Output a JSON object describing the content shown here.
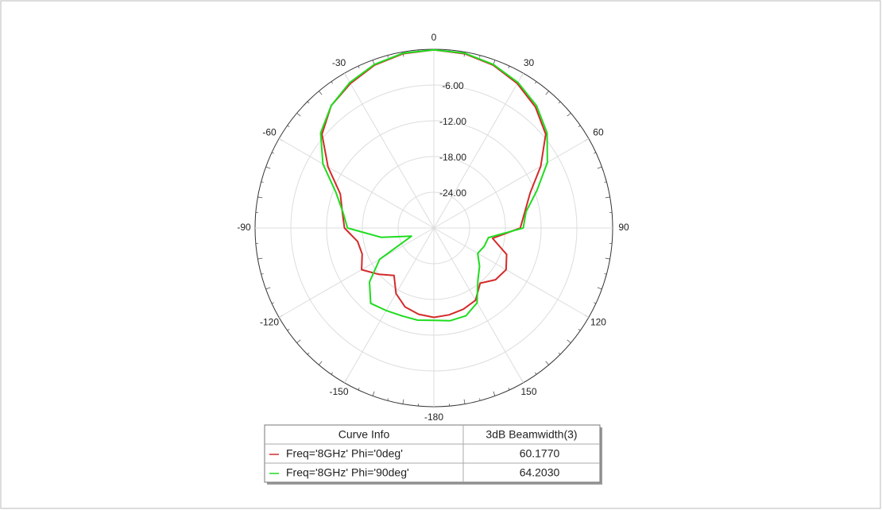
{
  "chart_data": {
    "type": "polar",
    "rlim": [
      -30,
      0
    ],
    "rticks": [
      {
        "value": -24,
        "label": "-24.00"
      },
      {
        "value": -18,
        "label": "-18.00"
      },
      {
        "value": -12,
        "label": "-12.00"
      },
      {
        "value": -6,
        "label": "-6.00"
      }
    ],
    "thetaticks": [
      0,
      30,
      60,
      90,
      120,
      150,
      -180,
      -150,
      -120,
      -90,
      -60,
      -30
    ],
    "theta": [
      -180,
      -170,
      -160,
      -150,
      -140,
      -130,
      -120,
      -110,
      -100,
      -90,
      -80,
      -70,
      -60,
      -50,
      -40,
      -30,
      -20,
      -10,
      0,
      10,
      20,
      30,
      40,
      50,
      60,
      70,
      80,
      90,
      100,
      110,
      120,
      130,
      140,
      150,
      160,
      170
    ],
    "series": [
      {
        "name": "Freq='8GHz' Phi='0deg'",
        "color": "#d42a2a",
        "beamwidth": "60.1770",
        "values": [
          -15,
          -15.3,
          -15.9,
          -17.3,
          -19.6,
          -17.9,
          -16,
          -17.2,
          -17,
          -15,
          -14.4,
          -13.3,
          -9.5,
          -5.5,
          -3.2,
          -2.0,
          -0.9,
          -0.3,
          -0.1,
          -0.3,
          -0.9,
          -2.0,
          -3.5,
          -5.5,
          -9.3,
          -12.8,
          -14.5,
          -15.5,
          -20,
          -17,
          -16,
          -16.5,
          -17.9,
          -16,
          -15.5,
          -15.2
        ]
      },
      {
        "name": "Freq='8GHz' Phi='90deg'",
        "color": "#1fdc1f",
        "beamwidth": "64.2030",
        "values": [
          -14.5,
          -14.3,
          -14.3,
          -14,
          -13.5,
          -15.9,
          -19.5,
          -26,
          -21,
          -15.5,
          -14.5,
          -12.5,
          -8.5,
          -5.2,
          -3.2,
          -1.8,
          -0.8,
          -0.2,
          -0.1,
          -0.2,
          -0.8,
          -1.8,
          -3.2,
          -5.2,
          -8,
          -11.6,
          -14.3,
          -15,
          -20.7,
          -21,
          -21.5,
          -20,
          -18.5,
          -15.5,
          -14.3,
          -14.2
        ]
      }
    ],
    "legend": {
      "columns": [
        "Curve Info",
        "3dB Beamwidth(3)"
      ]
    }
  }
}
